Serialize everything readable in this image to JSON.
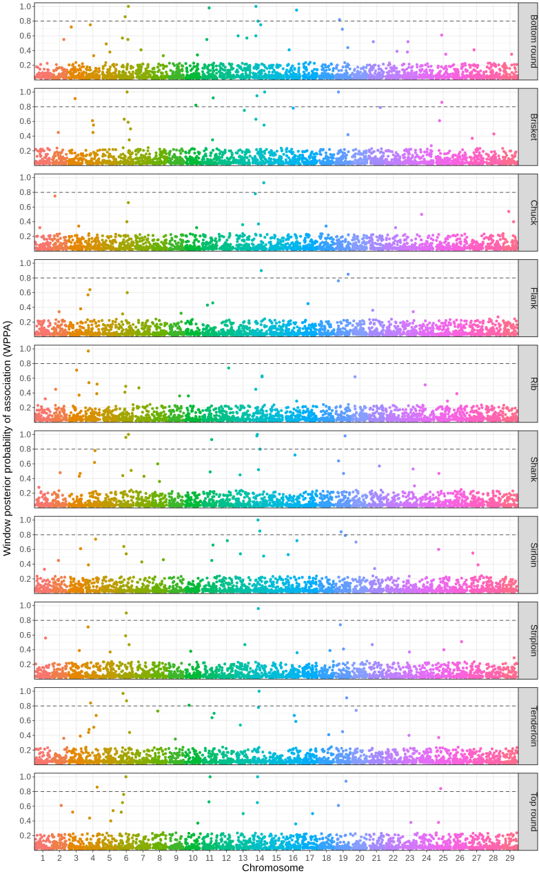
{
  "chart_data": {
    "type": "scatter",
    "ylabel": "Window posterior probability of association (WPPA)",
    "xlabel": "Chromosome",
    "x_ticks": [
      "1",
      "2",
      "3",
      "4",
      "5",
      "6",
      "7",
      "8",
      "9",
      "10",
      "11",
      "12",
      "13",
      "14",
      "15",
      "16",
      "17",
      "18",
      "19",
      "20",
      "21",
      "22",
      "23",
      "24",
      "25",
      "26",
      "27",
      "28",
      "29"
    ],
    "y_ticks": [
      "0.2",
      "0.4",
      "0.6",
      "0.8",
      "1.0"
    ],
    "ylim": [
      0,
      1.05
    ],
    "threshold": 0.8,
    "grid": true,
    "colors": [
      "#F8766D",
      "#F07E4A",
      "#E58700",
      "#D59100",
      "#C09B00",
      "#A3A500",
      "#89AC00",
      "#6BB100",
      "#3EB62A",
      "#00BA38",
      "#00BE6C",
      "#00C08B",
      "#00C1A6",
      "#00BFC4",
      "#00BCD8",
      "#00B6EB",
      "#00ADFA",
      "#35A2FF",
      "#619CFF",
      "#879DFF",
      "#A58AFF",
      "#BE80FF",
      "#D277FA",
      "#E36EF6",
      "#F066EA",
      "#F962DD",
      "#FF61C3",
      "#FF64AE",
      "#FF6C91"
    ],
    "facets": [
      {
        "name": "Bottom round",
        "peaks": [
          [
            2,
            0.55
          ],
          [
            3,
            0.72
          ],
          [
            4,
            0.75
          ],
          [
            4,
            0.33
          ],
          [
            5,
            0.49
          ],
          [
            5,
            0.38
          ],
          [
            6,
            1.0
          ],
          [
            6,
            0.86
          ],
          [
            6,
            0.57
          ],
          [
            6,
            0.55
          ],
          [
            7,
            0.41
          ],
          [
            8,
            0.33
          ],
          [
            10,
            0.34
          ],
          [
            11,
            0.98
          ],
          [
            11,
            0.55
          ],
          [
            13,
            0.57
          ],
          [
            13,
            0.6
          ],
          [
            14,
            1.0
          ],
          [
            14,
            0.8
          ],
          [
            14,
            0.75
          ],
          [
            14,
            0.6
          ],
          [
            16,
            0.95
          ],
          [
            16,
            0.41
          ],
          [
            19,
            0.82
          ],
          [
            19,
            0.69
          ],
          [
            19,
            0.44
          ],
          [
            21,
            0.52
          ],
          [
            22,
            0.39
          ],
          [
            23,
            0.52
          ],
          [
            23,
            0.38
          ],
          [
            25,
            0.61
          ],
          [
            25,
            0.35
          ],
          [
            27,
            0.41
          ],
          [
            29,
            0.35
          ]
        ]
      },
      {
        "name": "Brisket",
        "peaks": [
          [
            2,
            0.45
          ],
          [
            3,
            0.91
          ],
          [
            4,
            0.61
          ],
          [
            4,
            0.55
          ],
          [
            4,
            0.45
          ],
          [
            6,
            1.0
          ],
          [
            6,
            0.63
          ],
          [
            6,
            0.59
          ],
          [
            6,
            0.5
          ],
          [
            6,
            0.35
          ],
          [
            10,
            0.82
          ],
          [
            11,
            0.92
          ],
          [
            11,
            0.35
          ],
          [
            13,
            0.75
          ],
          [
            14,
            1.0
          ],
          [
            14,
            0.95
          ],
          [
            14,
            0.63
          ],
          [
            14,
            0.55
          ],
          [
            16,
            0.78
          ],
          [
            19,
            1.0
          ],
          [
            19,
            0.42
          ],
          [
            21,
            0.79
          ],
          [
            24,
            0.27
          ],
          [
            25,
            0.86
          ],
          [
            25,
            0.61
          ],
          [
            27,
            0.37
          ],
          [
            28,
            0.43
          ]
        ]
      },
      {
        "name": "Chuck",
        "peaks": [
          [
            1,
            0.32
          ],
          [
            2,
            0.75
          ],
          [
            3,
            0.34
          ],
          [
            6,
            0.66
          ],
          [
            6,
            0.4
          ],
          [
            10,
            0.32
          ],
          [
            13,
            0.36
          ],
          [
            14,
            0.93
          ],
          [
            14,
            0.78
          ],
          [
            14,
            0.37
          ],
          [
            18,
            0.34
          ],
          [
            22,
            0.32
          ],
          [
            24,
            0.5
          ],
          [
            29,
            0.54
          ],
          [
            29,
            0.4
          ]
        ]
      },
      {
        "name": "Flank",
        "peaks": [
          [
            2,
            0.34
          ],
          [
            3,
            0.38
          ],
          [
            4,
            0.64
          ],
          [
            4,
            0.57
          ],
          [
            6,
            0.6
          ],
          [
            6,
            0.31
          ],
          [
            9,
            0.32
          ],
          [
            11,
            0.46
          ],
          [
            11,
            0.43
          ],
          [
            14,
            0.9
          ],
          [
            17,
            0.45
          ],
          [
            19,
            0.85
          ],
          [
            19,
            0.76
          ],
          [
            21,
            0.36
          ],
          [
            23,
            0.34
          ],
          [
            28,
            0.27
          ]
        ]
      },
      {
        "name": "Rib",
        "peaks": [
          [
            1,
            0.32
          ],
          [
            2,
            0.45
          ],
          [
            3,
            0.71
          ],
          [
            3,
            0.37
          ],
          [
            4,
            0.97
          ],
          [
            4,
            0.54
          ],
          [
            4,
            0.52
          ],
          [
            4,
            0.39
          ],
          [
            6,
            0.49
          ],
          [
            6,
            0.41
          ],
          [
            7,
            0.47
          ],
          [
            9,
            0.36
          ],
          [
            10,
            0.36
          ],
          [
            12,
            0.74
          ],
          [
            14,
            0.63
          ],
          [
            14,
            0.62
          ],
          [
            14,
            0.45
          ],
          [
            16,
            0.29
          ],
          [
            20,
            0.62
          ],
          [
            24,
            0.51
          ],
          [
            25,
            0.29
          ],
          [
            26,
            0.39
          ]
        ]
      },
      {
        "name": "Shank",
        "peaks": [
          [
            1,
            0.28
          ],
          [
            2,
            0.48
          ],
          [
            3,
            0.47
          ],
          [
            3,
            0.43
          ],
          [
            4,
            0.78
          ],
          [
            4,
            0.62
          ],
          [
            6,
            1.0
          ],
          [
            6,
            0.96
          ],
          [
            6,
            0.51
          ],
          [
            6,
            0.44
          ],
          [
            7,
            0.43
          ],
          [
            8,
            0.6
          ],
          [
            8,
            0.36
          ],
          [
            11,
            0.93
          ],
          [
            11,
            0.49
          ],
          [
            13,
            0.45
          ],
          [
            14,
            1.0
          ],
          [
            14,
            0.98
          ],
          [
            14,
            0.8
          ],
          [
            14,
            0.52
          ],
          [
            16,
            0.72
          ],
          [
            19,
            0.98
          ],
          [
            19,
            0.64
          ],
          [
            19,
            0.47
          ],
          [
            21,
            0.57
          ],
          [
            23,
            0.53
          ],
          [
            23,
            0.3
          ],
          [
            25,
            0.47
          ],
          [
            26,
            0.25
          ]
        ]
      },
      {
        "name": "Sirloin",
        "peaks": [
          [
            1,
            0.33
          ],
          [
            2,
            0.45
          ],
          [
            3,
            0.61
          ],
          [
            4,
            0.74
          ],
          [
            4,
            0.39
          ],
          [
            6,
            0.64
          ],
          [
            6,
            0.54
          ],
          [
            7,
            0.43
          ],
          [
            8,
            0.46
          ],
          [
            11,
            0.66
          ],
          [
            11,
            0.45
          ],
          [
            12,
            0.72
          ],
          [
            13,
            0.54
          ],
          [
            14,
            1.0
          ],
          [
            14,
            0.85
          ],
          [
            14,
            0.51
          ],
          [
            16,
            0.72
          ],
          [
            16,
            0.53
          ],
          [
            19,
            0.84
          ],
          [
            19,
            0.79
          ],
          [
            20,
            0.7
          ],
          [
            21,
            0.34
          ],
          [
            25,
            0.6
          ],
          [
            27,
            0.55
          ],
          [
            27,
            0.39
          ]
        ]
      },
      {
        "name": "Striploin",
        "peaks": [
          [
            1,
            0.56
          ],
          [
            3,
            0.39
          ],
          [
            4,
            0.71
          ],
          [
            5,
            0.37
          ],
          [
            6,
            0.9
          ],
          [
            6,
            0.59
          ],
          [
            6,
            0.47
          ],
          [
            10,
            0.38
          ],
          [
            13,
            0.47
          ],
          [
            14,
            0.96
          ],
          [
            16,
            0.36
          ],
          [
            18,
            0.39
          ],
          [
            19,
            0.74
          ],
          [
            19,
            0.41
          ],
          [
            21,
            0.47
          ],
          [
            23,
            0.37
          ],
          [
            25,
            0.4
          ],
          [
            26,
            0.51
          ],
          [
            29,
            0.29
          ]
        ]
      },
      {
        "name": "Tenderloin",
        "peaks": [
          [
            2,
            0.36
          ],
          [
            3,
            0.39
          ],
          [
            4,
            0.84
          ],
          [
            4,
            0.67
          ],
          [
            4,
            0.51
          ],
          [
            4,
            0.48
          ],
          [
            4,
            0.44
          ],
          [
            6,
            0.97
          ],
          [
            6,
            0.87
          ],
          [
            6,
            0.44
          ],
          [
            8,
            0.73
          ],
          [
            9,
            0.35
          ],
          [
            10,
            0.81
          ],
          [
            11,
            0.7
          ],
          [
            11,
            0.64
          ],
          [
            13,
            0.54
          ],
          [
            14,
            1.0
          ],
          [
            14,
            0.78
          ],
          [
            16,
            0.67
          ],
          [
            16,
            0.59
          ],
          [
            18,
            0.41
          ],
          [
            19,
            0.91
          ],
          [
            19,
            0.45
          ],
          [
            20,
            0.74
          ],
          [
            23,
            0.4
          ],
          [
            25,
            0.37
          ]
        ]
      },
      {
        "name": "Top round",
        "peaks": [
          [
            2,
            0.61
          ],
          [
            3,
            0.52
          ],
          [
            4,
            0.86
          ],
          [
            4,
            0.44
          ],
          [
            5,
            0.54
          ],
          [
            5,
            0.4
          ],
          [
            6,
            1.0
          ],
          [
            6,
            0.76
          ],
          [
            6,
            0.65
          ],
          [
            6,
            0.52
          ],
          [
            10,
            0.37
          ],
          [
            11,
            1.0
          ],
          [
            11,
            0.66
          ],
          [
            13,
            0.5
          ],
          [
            14,
            1.0
          ],
          [
            14,
            0.65
          ],
          [
            16,
            0.36
          ],
          [
            17,
            0.5
          ],
          [
            19,
            0.94
          ],
          [
            19,
            0.61
          ],
          [
            23,
            0.38
          ],
          [
            25,
            0.84
          ],
          [
            25,
            0.38
          ]
        ]
      }
    ]
  }
}
